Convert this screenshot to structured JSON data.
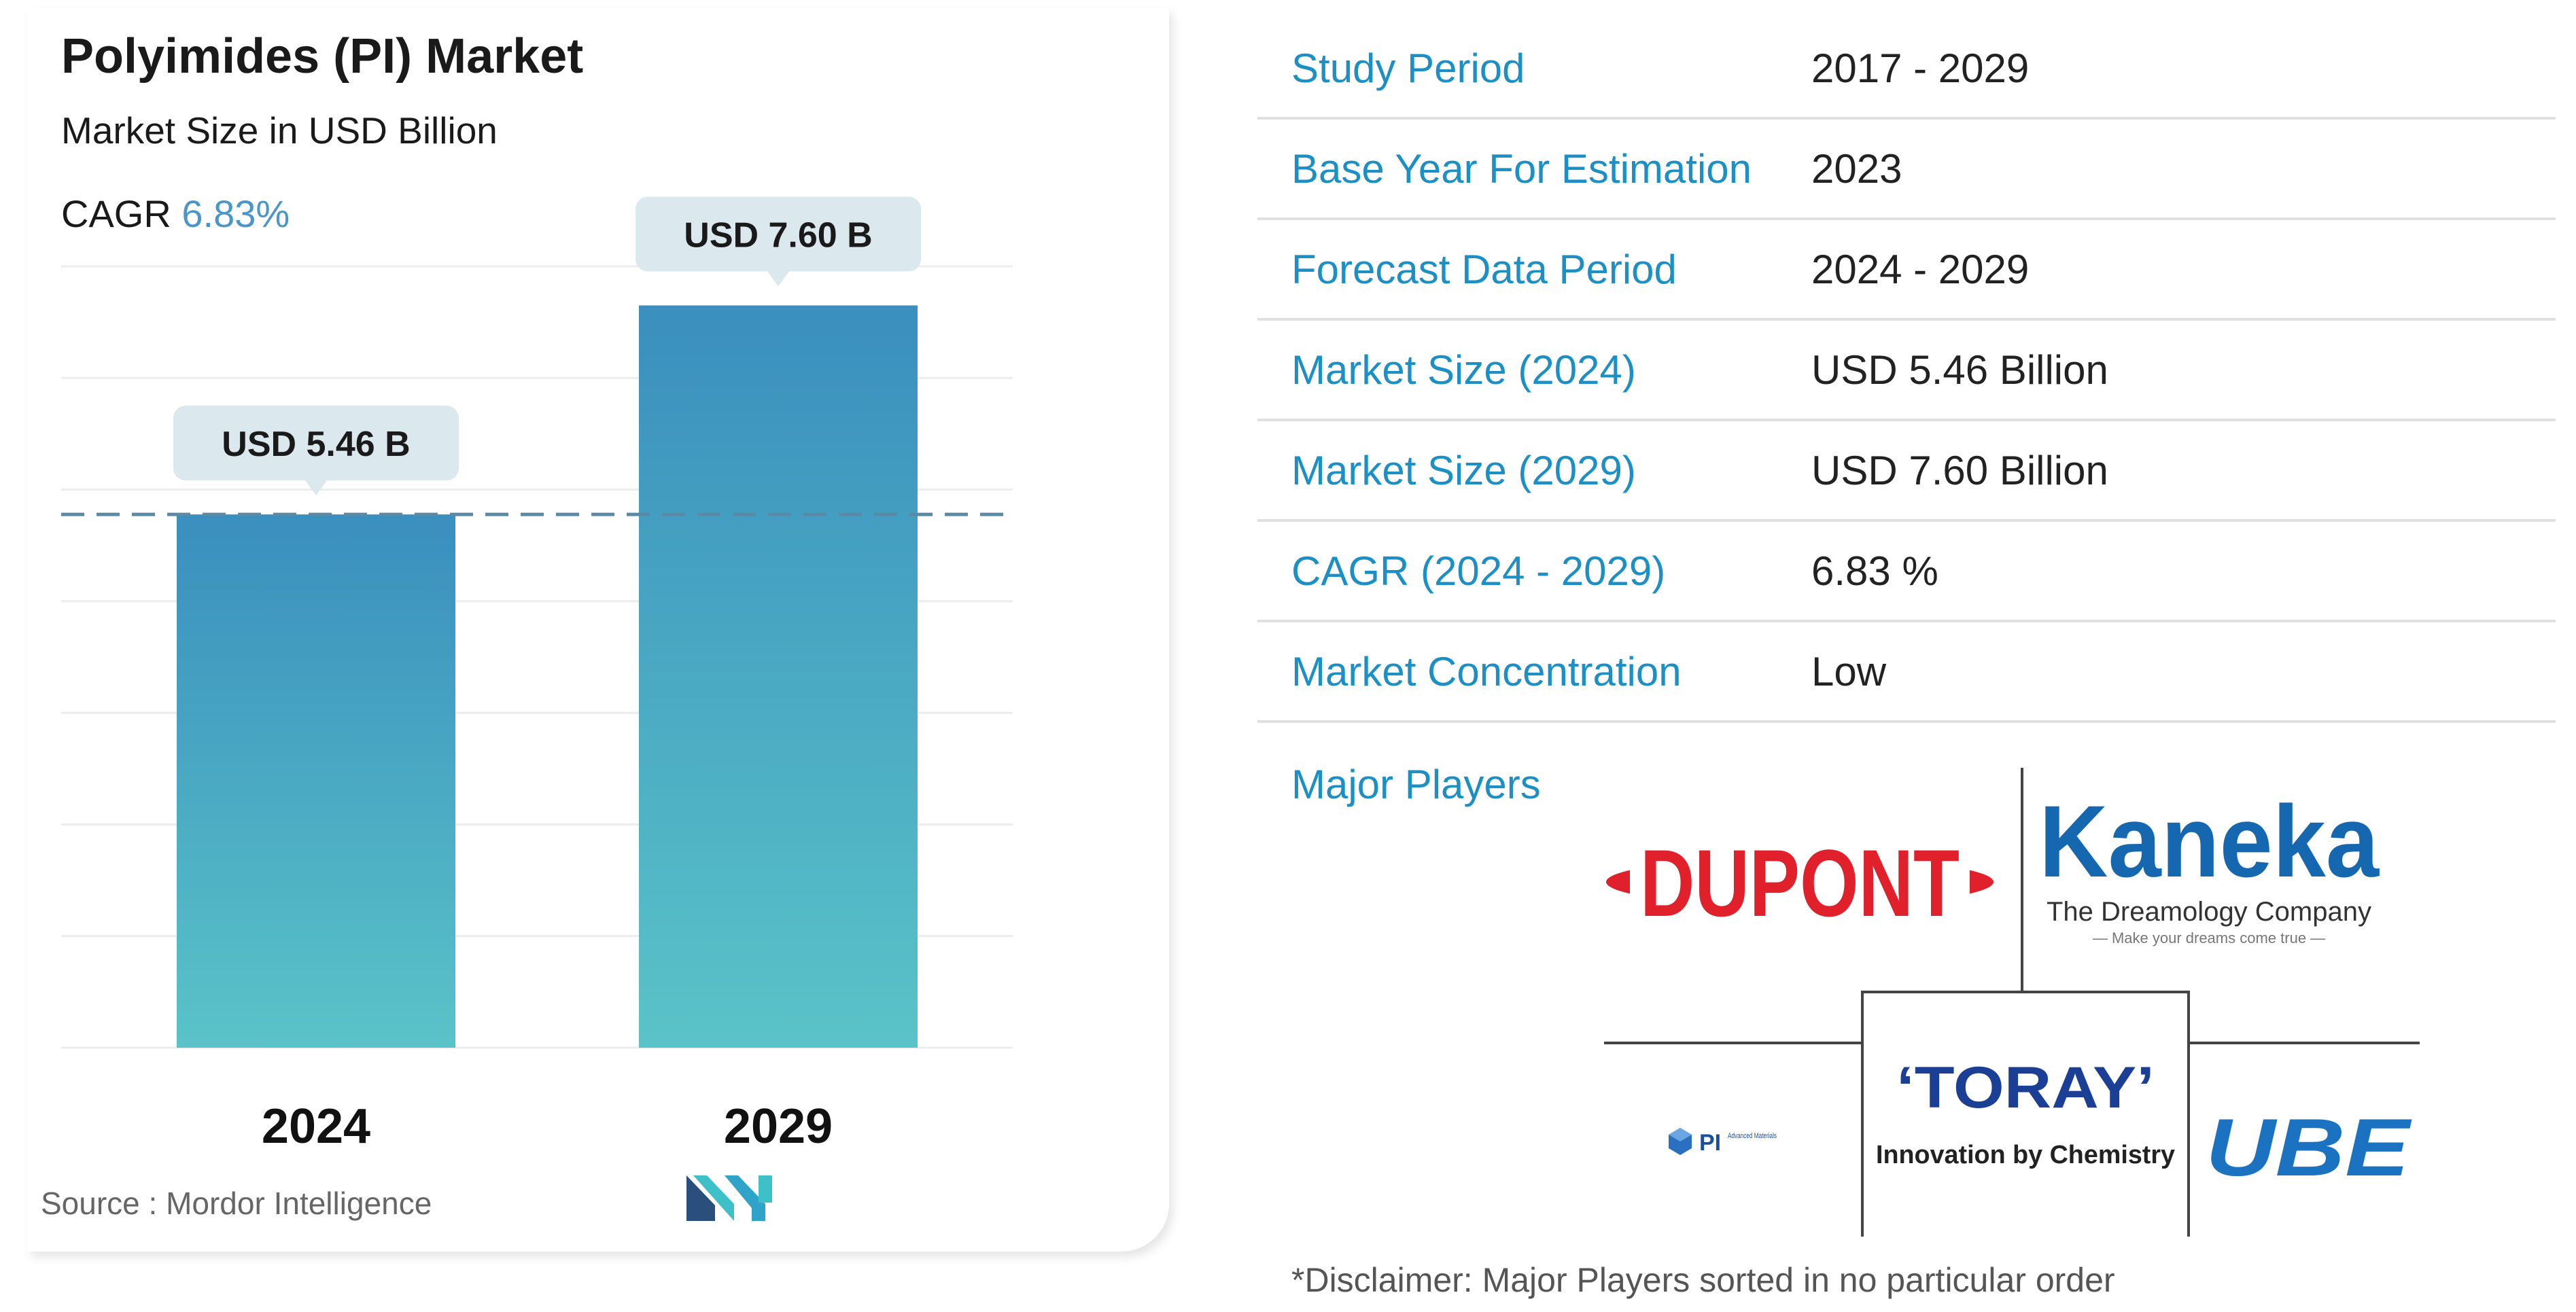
{
  "header": {
    "title": "Polyimides (PI) Market",
    "subtitle": "Market Size in USD Billion",
    "cagr_label": "CAGR",
    "cagr_value": "6.83%"
  },
  "chart_data": {
    "type": "bar",
    "categories": [
      "2024",
      "2029"
    ],
    "values": [
      5.46,
      7.6
    ],
    "data_labels": [
      "USD 5.46 B",
      "USD 7.60 B"
    ],
    "title": "Polyimides (PI) Market",
    "ylabel": "",
    "xlabel": "",
    "ylim": [
      0,
      8
    ],
    "grid": true,
    "reference_line_value": 5.46,
    "colors": {
      "bar_top": "#3a8fbe",
      "bar_bottom": "#5ac3c8",
      "label_bg": "#dbe8ee",
      "dash": "#5b8aa6"
    }
  },
  "source": "Source : Mordor Intelligence",
  "info": {
    "rows": [
      {
        "label": "Study Period",
        "value": "2017 - 2029"
      },
      {
        "label": "Base Year For Estimation",
        "value": "2023"
      },
      {
        "label": "Forecast Data Period",
        "value": "2024 - 2029"
      },
      {
        "label": "Market Size (2024)",
        "value": "USD 5.46 Billion"
      },
      {
        "label": "Market Size (2029)",
        "value": "USD 7.60 Billion"
      },
      {
        "label": "CAGR (2024 - 2029)",
        "value": "6.83 %"
      },
      {
        "label": "Market Concentration",
        "value": "Low"
      }
    ],
    "major_players_label": "Major Players",
    "players": {
      "dupont": "DUPONT",
      "kaneka": "Kaneka",
      "kaneka_tagline": "The Dreamology Company",
      "kaneka_subtagline": "— Make your dreams come true —",
      "toray": "‘TORAY’",
      "toray_tagline": "Innovation by Chemistry",
      "pi_advanced": "PI",
      "pi_advanced_sub": "Advanced Materials",
      "ube": "UBE"
    },
    "disclaimer": "*Disclaimer: Major Players sorted in no particular order"
  },
  "colors": {
    "accent": "#1c8fc5",
    "dupont": "#e0202a",
    "kaneka": "#1568b0",
    "toray": "#1b3f94",
    "ube": "#1a72c0"
  }
}
